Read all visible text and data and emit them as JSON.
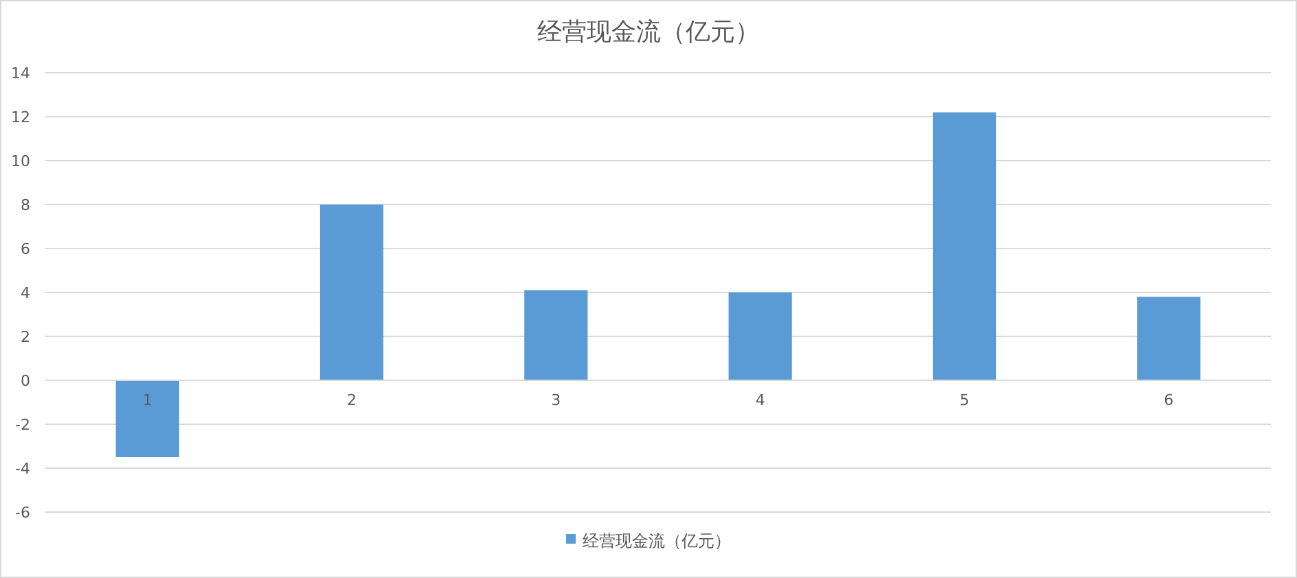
{
  "chart_data": {
    "type": "bar",
    "title": "经营现金流（亿元）",
    "categories": [
      "1",
      "2",
      "3",
      "4",
      "5",
      "6"
    ],
    "series": [
      {
        "name": "经营现金流（亿元）",
        "color": "#5b9bd5",
        "values": [
          -3.5,
          8.0,
          4.1,
          4.0,
          12.2,
          3.8
        ]
      }
    ],
    "ylim": [
      -6,
      14
    ],
    "yticks": [
      -6,
      -4,
      -2,
      0,
      2,
      4,
      6,
      8,
      10,
      12,
      14
    ],
    "grid": "y",
    "legend": "bottom"
  }
}
